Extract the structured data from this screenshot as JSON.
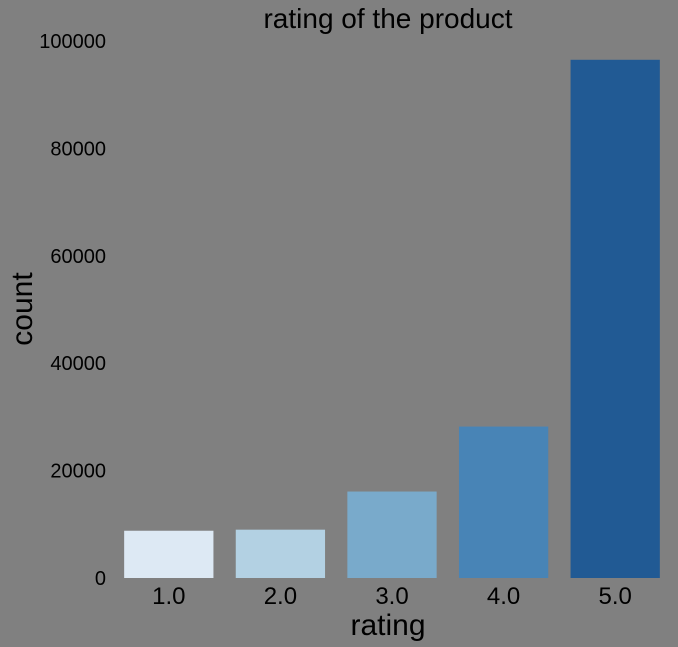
{
  "chart_data": {
    "type": "bar",
    "title": "rating of the product",
    "xlabel": "rating",
    "ylabel": "count",
    "categories": [
      "1.0",
      "2.0",
      "3.0",
      "4.0",
      "5.0"
    ],
    "values": [
      8800,
      9000,
      16100,
      28200,
      96500
    ],
    "ylim": [
      0,
      100000
    ],
    "yticks": [
      "0",
      "20000",
      "40000",
      "60000",
      "80000",
      "100000"
    ],
    "grid": false,
    "legend": "none",
    "colors": [
      "#dde9f4",
      "#b3d1e3",
      "#79aacb",
      "#4884b6",
      "#215a94"
    ],
    "background": "#808080"
  }
}
